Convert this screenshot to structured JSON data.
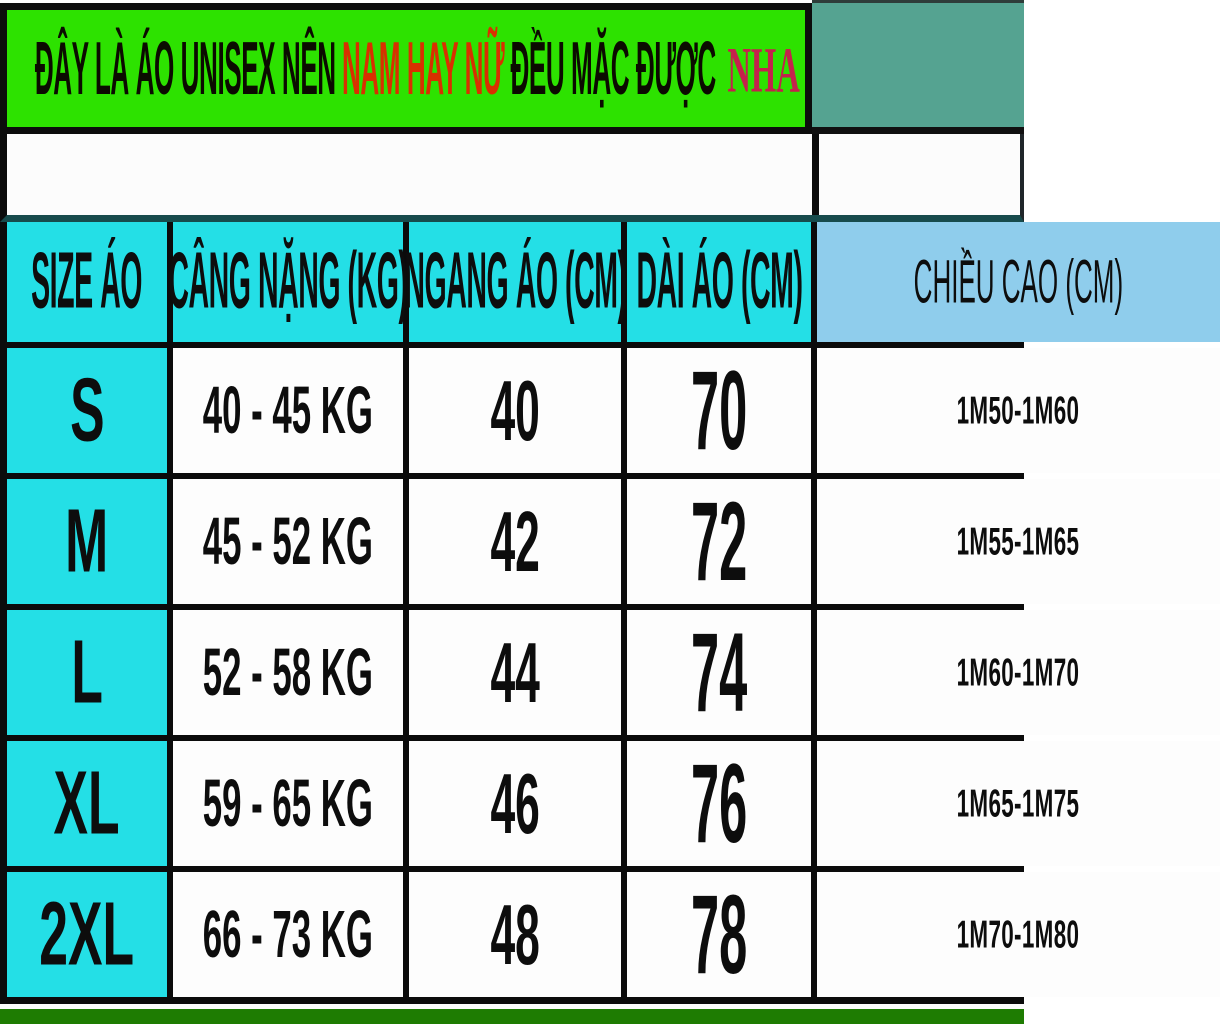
{
  "banner": {
    "part1": "ĐÂY LÀ ÁO UNISEX NÊN",
    "highlight": "NAM HAY NỮ",
    "part2": "ĐỀU MẶC ĐƯỢC",
    "suffix": "NHA"
  },
  "colors": {
    "banner_bg": "#2DE200",
    "banner_text": "#0B0B00",
    "highlight_red": "#D93000",
    "suffix_crimson": "#C4224C",
    "header_cyan": "#24DFE6",
    "header_light_blue": "#8FCDEC",
    "corner_teal": "#55A391",
    "bottom_strip_green": "#1E7C02",
    "grid_line_black": "#0B0B0B",
    "band_border_teal": "#174B4C"
  },
  "chart_data": {
    "type": "table",
    "title": "ĐÂY LÀ ÁO UNISEX NÊN NAM HAY NỮ ĐỀU MẶC ĐƯỢC NHA",
    "columns": [
      "SIZE ÁO",
      "CÂNG NẶNG (KG)",
      "NGANG ÁO (CM)",
      "DÀI ÁO (CM)",
      "CHIỀU CAO (CM)"
    ],
    "rows": [
      {
        "size": "S",
        "weight": "40 - 45 KG",
        "chest": "40",
        "length": "70",
        "height": "1M50-1M60"
      },
      {
        "size": "M",
        "weight": "45 - 52 KG",
        "chest": "42",
        "length": "72",
        "height": "1M55-1M65"
      },
      {
        "size": "L",
        "weight": "52 - 58 KG",
        "chest": "44",
        "length": "74",
        "height": "1M60-1M70"
      },
      {
        "size": "XL",
        "weight": "59 - 65 KG",
        "chest": "46",
        "length": "76",
        "height": "1M65-1M75"
      },
      {
        "size": "2XL",
        "weight": "66 - 73 KG",
        "chest": "48",
        "length": "78",
        "height": "1M70-1M80"
      }
    ]
  }
}
